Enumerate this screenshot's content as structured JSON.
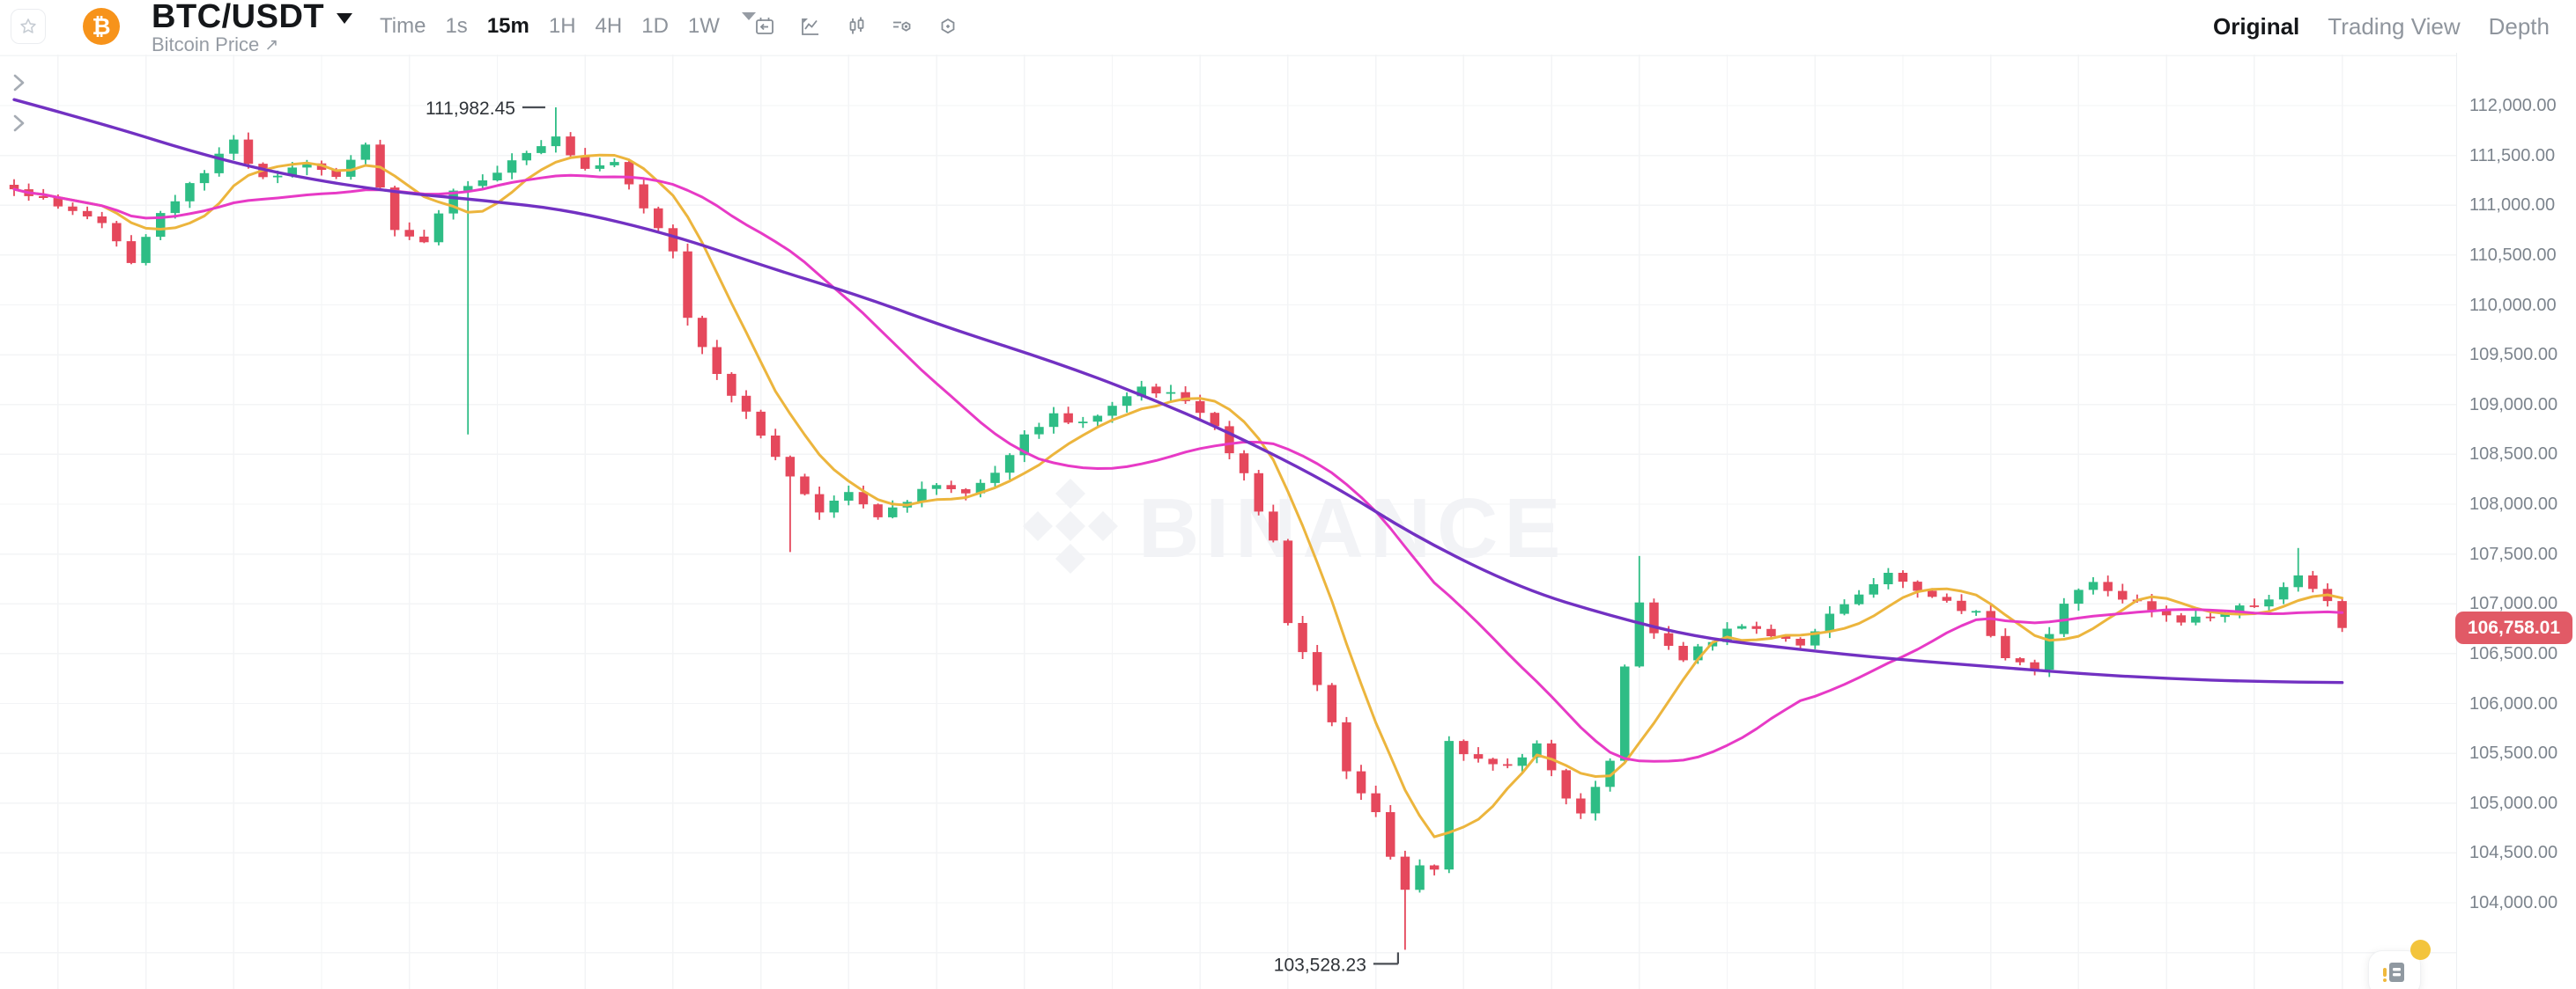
{
  "header": {
    "pair": "BTC/USDT",
    "subtitle": "Bitcoin Price",
    "external_arrow": "↗",
    "logo_symbol": "₿",
    "logo_color": "#f7931a",
    "timeframes": {
      "items": [
        "Time",
        "1s",
        "15m",
        "1H",
        "4H",
        "1D",
        "1W"
      ],
      "selected": "15m"
    },
    "tools": [
      {
        "name": "go-to-date",
        "icon": "calendar-icon"
      },
      {
        "name": "chart-style",
        "icon": "line-chart-icon"
      },
      {
        "name": "candlestick-style",
        "icon": "candlestick-icon"
      },
      {
        "name": "indicators",
        "icon": "indicators-icon"
      },
      {
        "name": "chart-settings",
        "icon": "settings-icon"
      }
    ],
    "view_tabs": {
      "items": [
        "Original",
        "Trading View",
        "Depth"
      ],
      "selected": "Original"
    }
  },
  "chart_data": {
    "type": "candlestick",
    "symbol": "BTC/USDT",
    "interval": "15m",
    "watermark": "BINANCE",
    "grid": "on",
    "legend_position": "collapsed",
    "y_axis": {
      "side": "right",
      "tick_step": 500,
      "range_top": 112500,
      "range_bottom": 103500,
      "ticks": [
        {
          "value": 112000,
          "label": "112,000.00"
        },
        {
          "value": 111500,
          "label": "111,500.00"
        },
        {
          "value": 111000,
          "label": "111,000.00"
        },
        {
          "value": 110500,
          "label": "110,500.00"
        },
        {
          "value": 110000,
          "label": "110,000.00"
        },
        {
          "value": 109500,
          "label": "109,500.00"
        },
        {
          "value": 109000,
          "label": "109,000.00"
        },
        {
          "value": 108500,
          "label": "108,500.00"
        },
        {
          "value": 108000,
          "label": "108,000.00"
        },
        {
          "value": 107500,
          "label": "107,500.00"
        },
        {
          "value": 107000,
          "label": "107,000.00"
        },
        {
          "value": 106500,
          "label": "106,500.00"
        },
        {
          "value": 106000,
          "label": "106,000.00"
        },
        {
          "value": 105500,
          "label": "105,500.00"
        },
        {
          "value": 105000,
          "label": "105,000.00"
        },
        {
          "value": 104500,
          "label": "104,500.00"
        },
        {
          "value": 104000,
          "label": "104,000.00"
        }
      ]
    },
    "annotations": {
      "high": {
        "candle_index": 37,
        "value": 111982.45,
        "label": "111,982.45"
      },
      "low": {
        "candle_index": 95,
        "value": 103528.23,
        "label": "103,528.23"
      }
    },
    "last_price": {
      "value": 106758.01,
      "label": "106,758.01",
      "direction": "down"
    },
    "candles": {
      "count": 160,
      "wiggle": 35,
      "wick": 70,
      "seed": 11,
      "close_keypoints": [
        [
          0,
          111150
        ],
        [
          2,
          111050
        ],
        [
          4,
          110950
        ],
        [
          6,
          110800
        ],
        [
          8,
          110450
        ],
        [
          10,
          110900
        ],
        [
          13,
          111350
        ],
        [
          15,
          111650
        ],
        [
          17,
          111250
        ],
        [
          20,
          111400
        ],
        [
          22,
          111300
        ],
        [
          24,
          111600
        ],
        [
          26,
          110750
        ],
        [
          28,
          110650
        ],
        [
          30,
          111150
        ],
        [
          33,
          111350
        ],
        [
          35,
          111500
        ],
        [
          37,
          111720
        ],
        [
          39,
          111350
        ],
        [
          41,
          111450
        ],
        [
          43,
          111000
        ],
        [
          45,
          110550
        ],
        [
          46,
          109900
        ],
        [
          48,
          109300
        ],
        [
          50,
          108900
        ],
        [
          52,
          108450
        ],
        [
          53,
          108250
        ],
        [
          55,
          107950
        ],
        [
          57,
          108150
        ],
        [
          59,
          107900
        ],
        [
          61,
          108050
        ],
        [
          63,
          108200
        ],
        [
          65,
          108100
        ],
        [
          67,
          108350
        ],
        [
          69,
          108700
        ],
        [
          71,
          108900
        ],
        [
          73,
          108800
        ],
        [
          75,
          109000
        ],
        [
          77,
          109150
        ],
        [
          79,
          109100
        ],
        [
          81,
          108900
        ],
        [
          82,
          108750
        ],
        [
          84,
          108300
        ],
        [
          86,
          107600
        ],
        [
          87,
          106800
        ],
        [
          89,
          106200
        ],
        [
          90,
          105800
        ],
        [
          91,
          105300
        ],
        [
          93,
          104900
        ],
        [
          94,
          104450
        ],
        [
          95,
          104150
        ],
        [
          96,
          104350
        ],
        [
          97,
          104300
        ],
        [
          98,
          105600
        ],
        [
          100,
          105450
        ],
        [
          102,
          105350
        ],
        [
          104,
          105600
        ],
        [
          106,
          105050
        ],
        [
          107,
          104900
        ],
        [
          109,
          105400
        ],
        [
          110,
          106400
        ],
        [
          111,
          107000
        ],
        [
          112,
          106700
        ],
        [
          114,
          106450
        ],
        [
          116,
          106650
        ],
        [
          118,
          106800
        ],
        [
          120,
          106700
        ],
        [
          122,
          106600
        ],
        [
          124,
          106900
        ],
        [
          126,
          107100
        ],
        [
          128,
          107300
        ],
        [
          130,
          107150
        ],
        [
          132,
          107000
        ],
        [
          134,
          106900
        ],
        [
          136,
          106450
        ],
        [
          138,
          106350
        ],
        [
          140,
          107000
        ],
        [
          142,
          107250
        ],
        [
          144,
          107050
        ],
        [
          146,
          106950
        ],
        [
          148,
          106800
        ],
        [
          150,
          106900
        ],
        [
          152,
          106950
        ],
        [
          154,
          107050
        ],
        [
          156,
          107300
        ],
        [
          158,
          107000
        ],
        [
          159,
          106758.01
        ]
      ],
      "specials": [
        {
          "i": 31,
          "low": 108700
        },
        {
          "i": 37,
          "high": 111982.45
        },
        {
          "i": 53,
          "low": 107520
        },
        {
          "i": 95,
          "low": 103528.23
        },
        {
          "i": 111,
          "high": 107480
        },
        {
          "i": 156,
          "high": 107560
        }
      ]
    },
    "ma_lines": [
      {
        "name": "ma-fast",
        "window": 7,
        "color": "#ecb53d"
      },
      {
        "name": "ma-mid",
        "window": 25,
        "color": "#e73ac6"
      },
      {
        "name": "ma-slow",
        "color": "#7231c2",
        "keypoints": [
          [
            0,
            112060
          ],
          [
            6,
            111820
          ],
          [
            13,
            111500
          ],
          [
            19,
            111290
          ],
          [
            26,
            111130
          ],
          [
            32,
            111050
          ],
          [
            38,
            110950
          ],
          [
            45,
            110700
          ],
          [
            51,
            110400
          ],
          [
            58,
            110080
          ],
          [
            64,
            109760
          ],
          [
            71,
            109430
          ],
          [
            77,
            109100
          ],
          [
            83,
            108720
          ],
          [
            90,
            108200
          ],
          [
            96,
            107650
          ],
          [
            103,
            107150
          ],
          [
            109,
            106880
          ],
          [
            115,
            106660
          ],
          [
            122,
            106540
          ],
          [
            128,
            106450
          ],
          [
            135,
            106370
          ],
          [
            141,
            106300
          ],
          [
            147,
            106250
          ],
          [
            153,
            106220
          ],
          [
            159,
            106210
          ]
        ]
      }
    ],
    "colors": {
      "up": "#2ebd85",
      "down": "#e5485c",
      "grid": "#f3f4f6",
      "axis_text": "#7c848d",
      "annotation": "#2f3338",
      "badge_bg": "#e15a66",
      "badge_text": "#ffffff",
      "watermark": "#f2f3f6"
    }
  },
  "floating_button": {
    "name": "news",
    "badge_dot": true,
    "dot_color": "#f3c43c"
  }
}
